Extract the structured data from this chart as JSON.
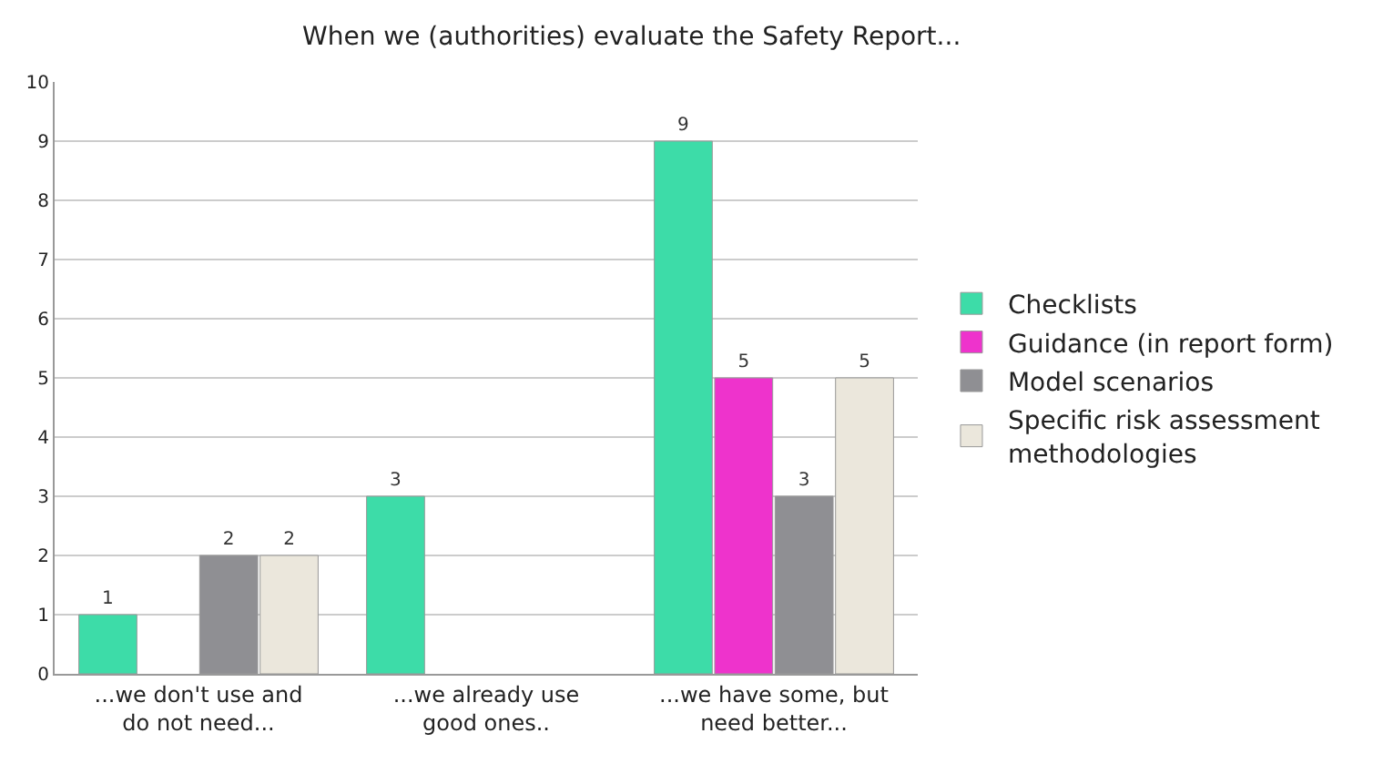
{
  "chart_data": {
    "type": "bar",
    "title": "When we (authorities) evaluate the Safety Report...",
    "categories": [
      "...we don't use and do not need...",
      "...we already use good ones..",
      "...we have some, but need better..."
    ],
    "series": [
      {
        "name": "Checklists",
        "color": "#3ddca8",
        "values": [
          1,
          3,
          9
        ]
      },
      {
        "name": "Guidance (in report form)",
        "color": "#ee33cc",
        "values": [
          null,
          null,
          5
        ]
      },
      {
        "name": "Model scenarios",
        "color": "#8f8f93",
        "values": [
          2,
          null,
          3
        ]
      },
      {
        "name": "Specific risk assessment methodologies",
        "color": "#ebe7dc",
        "values": [
          2,
          null,
          5
        ]
      }
    ],
    "ylim": [
      0,
      10
    ],
    "yticks": [
      0,
      1,
      2,
      3,
      4,
      5,
      6,
      7,
      8,
      9,
      10
    ],
    "grid": "y",
    "legend": "right",
    "data_labels": true
  }
}
